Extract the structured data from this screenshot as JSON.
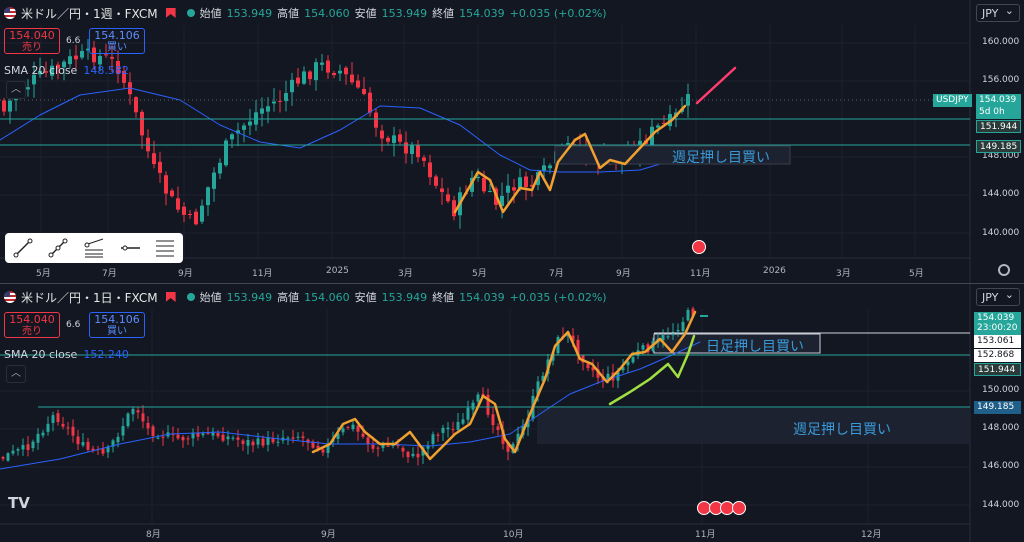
{
  "top": {
    "header": {
      "symbol": "米ドル／円・1週・FXCM",
      "open_label": "始値",
      "open": "153.949",
      "high_label": "高値",
      "high": "154.060",
      "low_label": "安値",
      "low": "153.949",
      "close_label": "終値",
      "close": "154.039",
      "change": "+0.035 (+0.02%)"
    },
    "sell_price": "154.040",
    "sell_label": "売り",
    "spread": "6.6",
    "buy_price": "154.106",
    "buy_label": "買い",
    "sma_label": "SMA 20 close",
    "sma_value": "148.582",
    "currency": "JPY",
    "y_ticks": [
      "160.000",
      "156.000",
      "152.000",
      "148.000",
      "144.000",
      "140.000"
    ],
    "x_ticks": [
      "5月",
      "7月",
      "9月",
      "11月",
      "2025",
      "3月",
      "5月",
      "7月",
      "9月",
      "11月",
      "2026",
      "3月",
      "5月"
    ],
    "price_tag": "154.039",
    "countdown": "5d 0h",
    "symbol_tag": "USDJPY",
    "level_upper": "151.944",
    "level_lower": "149.185",
    "annotation": "週足押し目買い",
    "icons": [
      "trend-line-icon",
      "info-line-icon",
      "fib-channel-icon",
      "horizontal-ray-icon",
      "horizontal-lines-icon"
    ]
  },
  "bottom": {
    "header": {
      "symbol": "米ドル／円・1日・FXCM",
      "open_label": "始値",
      "open": "153.949",
      "high_label": "高値",
      "high": "154.060",
      "low_label": "安値",
      "low": "153.949",
      "close_label": "終値",
      "close": "154.039",
      "change": "+0.035 (+0.02%)"
    },
    "sell_price": "154.040",
    "sell_label": "売り",
    "spread": "6.6",
    "buy_price": "154.106",
    "buy_label": "買い",
    "sma_label": "SMA 20 close",
    "sma_value": "152.240",
    "currency": "JPY",
    "y_ticks": [
      "150.000",
      "148.000",
      "146.000",
      "144.000"
    ],
    "x_ticks": [
      "8月",
      "9月",
      "10月",
      "11月",
      "12月"
    ],
    "price_tag": "154.039",
    "countdown": "23:00:20",
    "level_a": "153.061",
    "level_b": "152.868",
    "level_upper": "151.944",
    "level_lower": "149.185",
    "annotation_daily": "日足押し目買い",
    "annotation_weekly": "週足押し目買い"
  },
  "colors": {
    "bg": "#131722",
    "up": "#26a69a",
    "down": "#f23645",
    "sma": "#2962ff",
    "zigzag": "#f0a030",
    "green": "#a0e040",
    "pink": "#ff3d6e",
    "level": "#26a69a"
  }
}
